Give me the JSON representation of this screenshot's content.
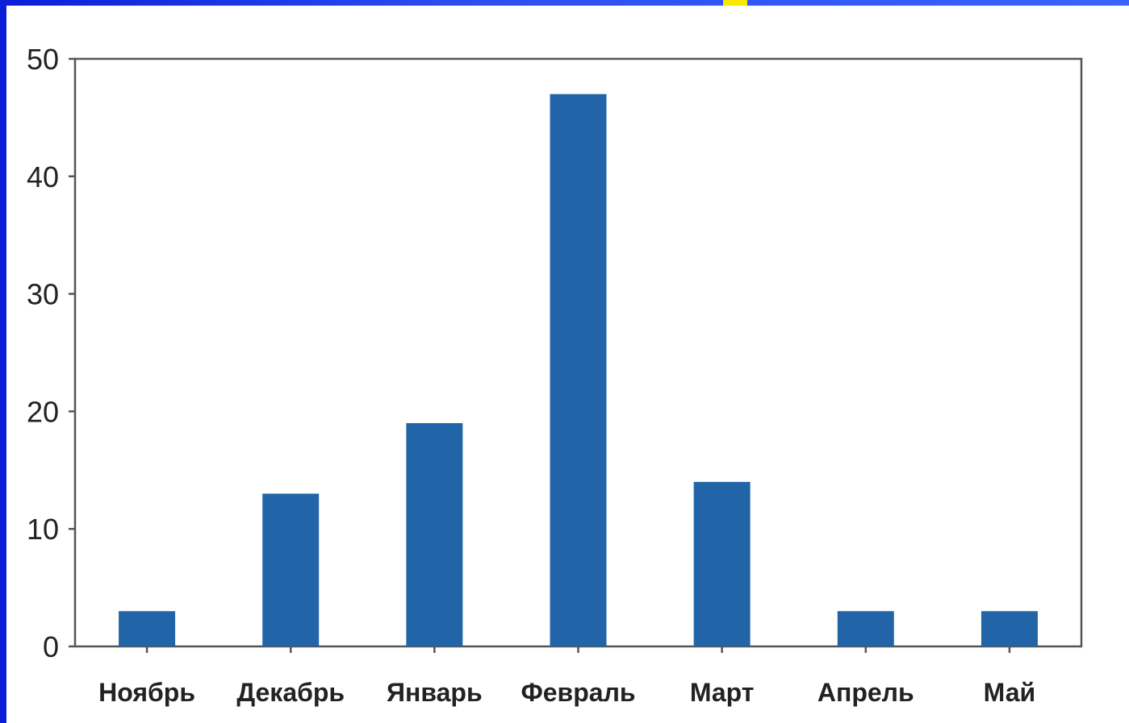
{
  "chart_data": {
    "type": "bar",
    "title": "",
    "xlabel": "",
    "ylabel": "",
    "categories": [
      "Ноябрь",
      "Декабрь",
      "Январь",
      "Февраль",
      "Март",
      "Апрель",
      "Май"
    ],
    "values": [
      3,
      13,
      19,
      47,
      14,
      3,
      3
    ],
    "ylim": [
      0,
      50
    ],
    "yticks": [
      "0",
      "10",
      "20",
      "30",
      "40",
      "50"
    ],
    "bar_color": "#2165a8",
    "axis_color": "#555555",
    "grid": false,
    "legend": "none"
  },
  "colors": {
    "background_blue": "#1a39e6",
    "accent_yellow": "#f7e800"
  }
}
